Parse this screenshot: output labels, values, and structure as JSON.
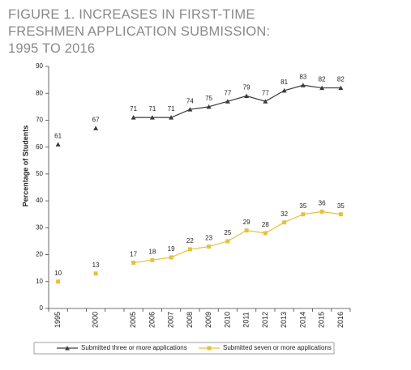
{
  "chart_data": {
    "type": "line",
    "title": "FIGURE 1. INCREASES IN FIRST-TIME FRESHMEN APPLICATION SUBMISSION: 1995 TO 2016",
    "y_label": "Percentage of Students",
    "categories": [
      "1995",
      "2000",
      "2005",
      "2006",
      "2007",
      "2008",
      "2009",
      "2010",
      "2011",
      "2012",
      "2013",
      "2014",
      "2015",
      "2016"
    ],
    "series": [
      {
        "name": "Submitted three or more applications",
        "color": "#3a3a3a",
        "marker": "triangle",
        "values": [
          61,
          67,
          71,
          71,
          71,
          74,
          75,
          77,
          79,
          77,
          81,
          83,
          82,
          82
        ]
      },
      {
        "name": "Submitted seven or more applications",
        "color": "#e6c13a",
        "marker": "square",
        "values": [
          10,
          13,
          17,
          18,
          19,
          22,
          23,
          25,
          29,
          28,
          32,
          35,
          36,
          35
        ]
      }
    ],
    "ylim": [
      0,
      90
    ],
    "yticks": [
      0,
      10,
      20,
      30,
      40,
      50,
      60,
      70,
      80,
      90
    ],
    "legend": "bottom"
  }
}
